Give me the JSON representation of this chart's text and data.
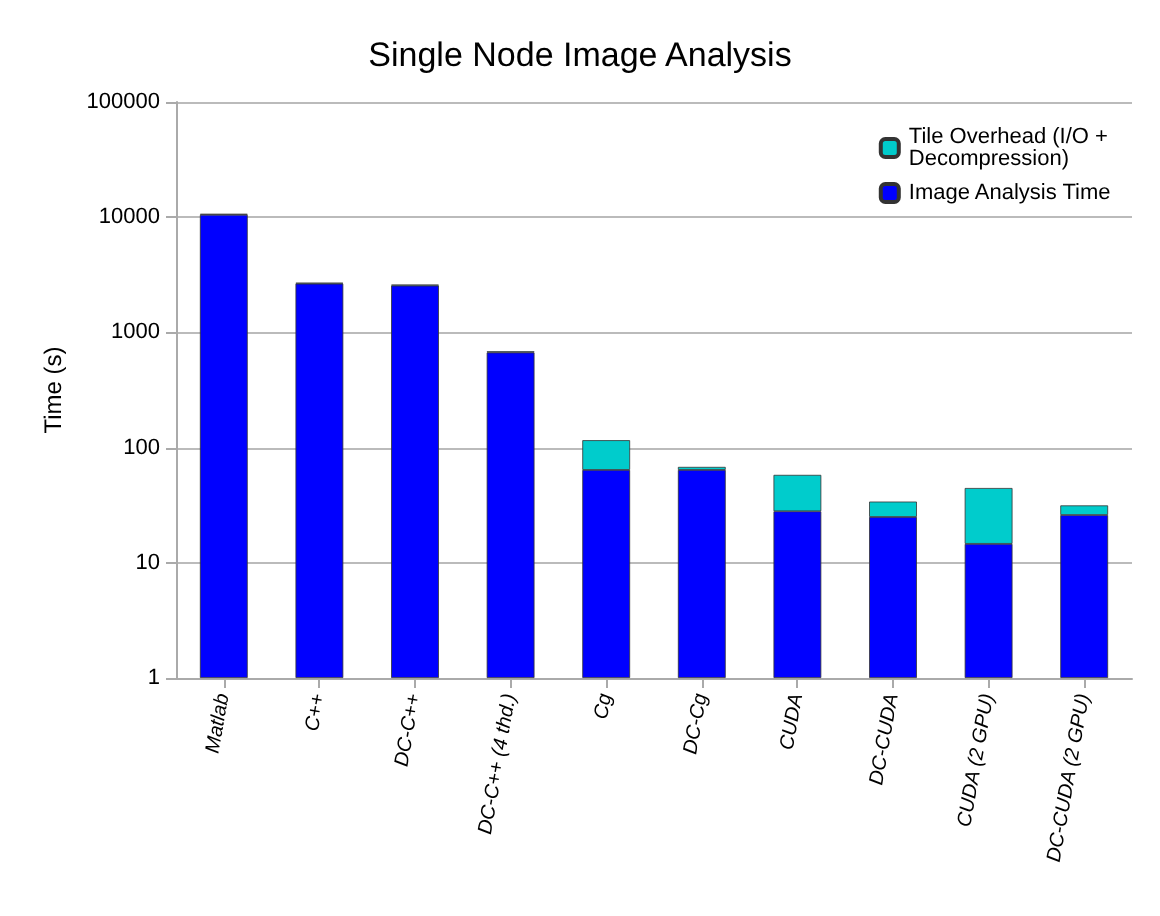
{
  "chart_data": {
    "type": "bar",
    "title": "Single Node Image Analysis",
    "ylabel": "Time (s)",
    "stacked": true,
    "log": true,
    "grid": "y",
    "legend": "top right",
    "categories": [
      "Matlab",
      "C++",
      "DC-C++",
      "DC-C++ (4 thd.)",
      "Cg",
      "DC-Cg",
      "CUDA",
      "DC-CUDA",
      "CUDA (2 GPU)",
      "DC-CUDA (2 GPU)"
    ],
    "series": [
      {
        "name": "Image Analysis Time",
        "color": "#0000ff",
        "values": [
          10500,
          2650,
          2550,
          670,
          64,
          64,
          28,
          25,
          14.6,
          26
        ]
      },
      {
        "name": "Tile Overhead (I/O + Decompression)",
        "color": "#00cccc",
        "values": [
          200,
          50,
          50,
          15,
          52,
          4,
          30,
          9,
          30,
          5.5
        ]
      }
    ],
    "ylim": [
      1,
      100000
    ],
    "yticks": [
      1,
      10,
      100,
      1000,
      10000,
      100000
    ]
  }
}
